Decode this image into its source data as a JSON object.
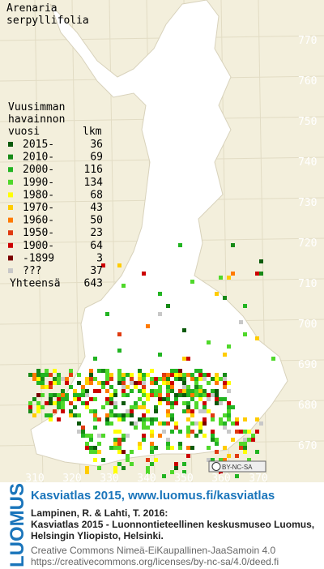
{
  "title_lines": [
    "Arenaria",
    "serpyllifolia"
  ],
  "legend": {
    "heading_lines": [
      "Vuusimman",
      "havainnon"
    ],
    "year_header": "vuosi",
    "count_header": "lkm",
    "entries": [
      {
        "label": "2015-",
        "count": 36,
        "color": "#0b5a0b"
      },
      {
        "label": "2010-",
        "count": 69,
        "color": "#178a17"
      },
      {
        "label": "2000-",
        "count": 116,
        "color": "#22b422"
      },
      {
        "label": "1990-",
        "count": 134,
        "color": "#4fd82a"
      },
      {
        "label": "1980-",
        "count": 68,
        "color": "#ffff00"
      },
      {
        "label": "1970-",
        "count": 43,
        "color": "#ffcc00"
      },
      {
        "label": "1960-",
        "count": 50,
        "color": "#ff7a00"
      },
      {
        "label": "1950-",
        "count": 23,
        "color": "#e03a10"
      },
      {
        "label": "1900-",
        "count": 64,
        "color": "#cc0000"
      },
      {
        "label": "-1899",
        "count": 3,
        "color": "#7a0000"
      },
      {
        "label": "???",
        "count": 37,
        "color": "#c8c8c8"
      }
    ],
    "total": {
      "label": "Yhteensä",
      "count": 643
    }
  },
  "grid": {
    "northing_labels": [
      770,
      760,
      750,
      740,
      730,
      720,
      710,
      700,
      690,
      680,
      670
    ],
    "easting_labels": [
      310,
      320,
      330,
      340,
      350,
      360,
      370
    ]
  },
  "license_badge": "BY-NC-SA",
  "footer": {
    "logo": "LUOMUS",
    "link": "Kasviatlas 2015, www.luomus.fi/kasviatlas",
    "citation_lines": [
      "Lampinen, R. & Lahti, T. 2016:",
      "Kasviatlas 2015 - Luonnontieteellinen keskusmuseo Luomus,",
      "Helsingin Yliopisto, Helsinki."
    ],
    "license_lines": [
      "Creative Commons Nimeä-EiKaupallinen-JaaSamoin 4.0",
      "https://creativecommons.org/licenses/by-nc-sa/4.0/deed.fi"
    ]
  }
}
